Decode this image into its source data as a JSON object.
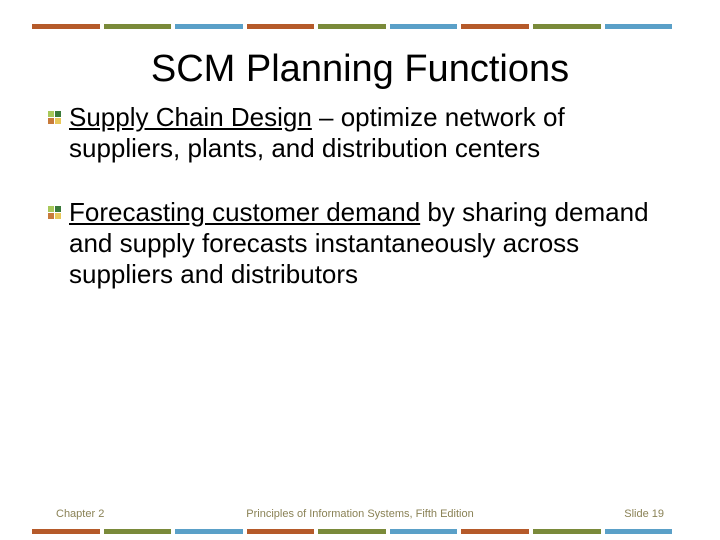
{
  "decor": {
    "bar_segments": 9,
    "bar_colors": [
      "#b55a2a",
      "#7a8a3a",
      "#5aa0c8",
      "#b55a2a",
      "#7a8a3a",
      "#5aa0c8",
      "#b55a2a",
      "#7a8a3a",
      "#5aa0c8"
    ]
  },
  "title": "SCM Planning Functions",
  "bullets": [
    {
      "underlined": "Supply Chain Design",
      "rest": " – optimize network of suppliers, plants, and distribution centers"
    },
    {
      "underlined": "Forecasting customer demand",
      "rest": " by sharing demand and supply forecasts instantaneously across suppliers and distributors"
    }
  ],
  "bullet_icon_colors": {
    "tl": "#a8c85a",
    "tr": "#3a7a3a",
    "bl": "#c87a3a",
    "br": "#e8c85a"
  },
  "footer": {
    "left": "Chapter 2",
    "center": "Principles of Information Systems, Fifth Edition",
    "right": "Slide 19"
  },
  "typography": {
    "title_fontsize": 38,
    "body_fontsize": 26,
    "footer_fontsize": 11,
    "footer_color": "#8a8256"
  }
}
